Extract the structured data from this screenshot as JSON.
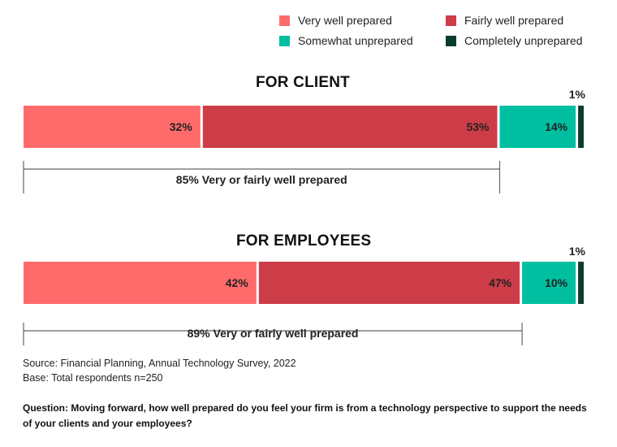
{
  "legend": [
    {
      "label": "Very well prepared",
      "color": "#ff6b6b"
    },
    {
      "label": "Fairly well prepared",
      "color": "#cc3d47"
    },
    {
      "label": "Somewhat unprepared",
      "color": "#00bfa0"
    },
    {
      "label": "Completely unprepared",
      "color": "#0b3d2e"
    }
  ],
  "chart_data": [
    {
      "type": "bar",
      "orientation": "horizontal-stacked-100",
      "title": "FOR CLIENT",
      "segments": [
        {
          "name": "Very well prepared",
          "value": 32,
          "label": "32%"
        },
        {
          "name": "Fairly well prepared",
          "value": 53,
          "label": "53%"
        },
        {
          "name": "Somewhat unprepared",
          "value": 14,
          "label": "14%"
        },
        {
          "name": "Completely unprepared",
          "value": 1,
          "label": "1%"
        }
      ],
      "bracket": {
        "value": 85,
        "label": "85% Very or fairly well prepared"
      }
    },
    {
      "type": "bar",
      "orientation": "horizontal-stacked-100",
      "title": "FOR EMPLOYEES",
      "segments": [
        {
          "name": "Very well prepared",
          "value": 42,
          "label": "42%"
        },
        {
          "name": "Fairly well prepared",
          "value": 47,
          "label": "47%"
        },
        {
          "name": "Somewhat unprepared",
          "value": 10,
          "label": "10%"
        },
        {
          "name": "Completely unprepared",
          "value": 1,
          "label": "1%"
        }
      ],
      "bracket": {
        "value": 89,
        "label": "89% Very or fairly well prepared"
      }
    }
  ],
  "footer": {
    "source": "Source: Financial Planning, Annual Technology Survey, 2022",
    "base": "Base: Total respondents n=250",
    "question": "Question: Moving forward, how well prepared do you feel your firm is from a technology perspective to support the needs of your clients and your employees?"
  }
}
